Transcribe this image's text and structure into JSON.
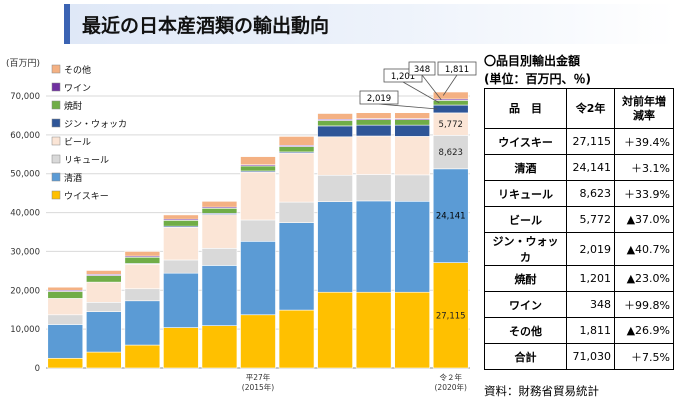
{
  "page_title": "最近の日本産酒類の輸出動向",
  "chart_data": {
    "type": "bar",
    "stacked": true,
    "unit_label": "(百万円)",
    "ylim": [
      0,
      70000
    ],
    "y_ticks": [
      "0",
      "10,000",
      "20,000",
      "30,000",
      "40,000",
      "50,000",
      "60,000",
      "70,000"
    ],
    "x_tick_labels": [
      {
        "index": 5,
        "lines": [
          "平27年",
          "(2015年)"
        ]
      },
      {
        "index": 10,
        "lines": [
          "令２年",
          "(2020年)"
        ]
      }
    ],
    "categories": [
      "",
      "",
      "",
      "",
      "",
      "",
      "",
      "",
      "",
      "",
      ""
    ],
    "grid": true,
    "legend_position": "top-left",
    "series": [
      {
        "name": "ウイスキー",
        "color": "#ffc000",
        "values": [
          2500,
          4100,
          5900,
          10400,
          10900,
          13700,
          14900,
          19500,
          19500,
          19500,
          27115
        ]
      },
      {
        "name": "清酒",
        "color": "#5b9bd5",
        "values": [
          8700,
          10400,
          11400,
          14000,
          15500,
          18900,
          22500,
          23300,
          23500,
          23400,
          24141
        ]
      },
      {
        "name": "リキュール",
        "color": "#d9d9d9",
        "values": [
          2500,
          2400,
          3100,
          3400,
          4400,
          5500,
          5300,
          6800,
          6800,
          6800,
          8623
        ]
      },
      {
        "name": "ビール",
        "color": "#fbe5d6",
        "values": [
          4200,
          5200,
          6300,
          8400,
          8700,
          12300,
          12600,
          9900,
          9900,
          9900,
          5772
        ]
      },
      {
        "name": "ジン・ウォッカ",
        "color": "#2e5597",
        "values": [
          0,
          0,
          200,
          300,
          300,
          300,
          300,
          2800,
          2800,
          2900,
          2019
        ]
      },
      {
        "name": "焼酎",
        "color": "#70ad47",
        "values": [
          1800,
          1700,
          1600,
          1500,
          1300,
          1300,
          1400,
          1400,
          1400,
          1400,
          1201
        ]
      },
      {
        "name": "ワイン",
        "color": "#7030a0",
        "values": [
          300,
          300,
          300,
          300,
          300,
          300,
          300,
          300,
          300,
          300,
          348
        ]
      },
      {
        "name": "その他",
        "color": "#f4b183",
        "values": [
          800,
          1000,
          1200,
          1100,
          1500,
          2100,
          2300,
          1500,
          1500,
          1500,
          1811
        ]
      }
    ],
    "data_labels": [
      {
        "series_index": 0,
        "text": "27,115"
      },
      {
        "series_index": 1,
        "text": "24,141"
      },
      {
        "series_index": 2,
        "text": "8,623"
      },
      {
        "series_index": 3,
        "text": "5,772"
      }
    ],
    "callouts": [
      "2,019",
      "1,201",
      "348",
      "1,811"
    ]
  },
  "table": {
    "title": "〇品目別輸出金額",
    "unit": "(単位：百万円、％)",
    "headers": [
      "品　目",
      "令2年",
      "対前年増減率"
    ],
    "rows": [
      {
        "name": "ウイスキー",
        "value": "27,115",
        "change": "＋39.4%"
      },
      {
        "name": "清酒",
        "value": "24,141",
        "change": "＋3.1%"
      },
      {
        "name": "リキュール",
        "value": "8,623",
        "change": "＋33.9%"
      },
      {
        "name": "ビール",
        "value": "5,772",
        "change": "▲37.0%"
      },
      {
        "name": "ジン・ウォッカ",
        "value": "2,019",
        "change": "▲40.7%"
      },
      {
        "name": "焼酎",
        "value": "1,201",
        "change": "▲23.0%"
      },
      {
        "name": "ワイン",
        "value": "348",
        "change": "＋99.8%"
      },
      {
        "name": "その他",
        "value": "1,811",
        "change": "▲26.9%"
      },
      {
        "name": "合計",
        "value": "71,030",
        "change": "＋7.5%"
      }
    ]
  },
  "source": "資料：財務省貿易統計"
}
